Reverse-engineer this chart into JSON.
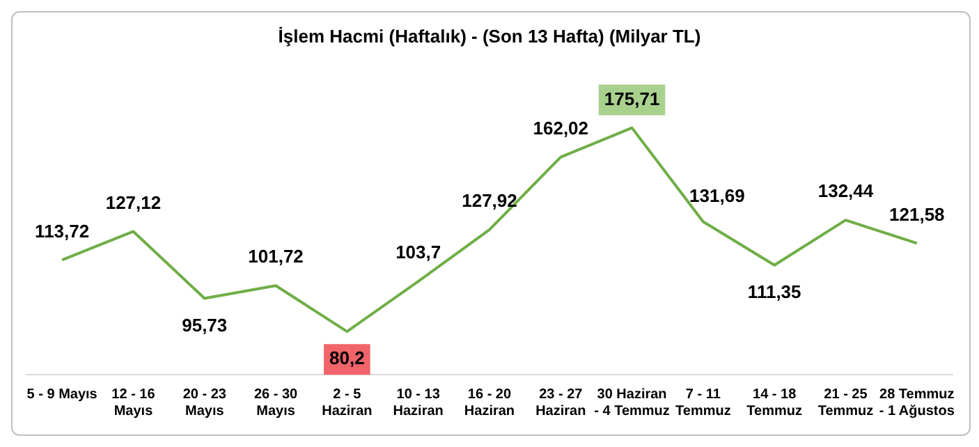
{
  "chart_data": {
    "type": "line",
    "title": "İşlem Hacmi (Haftalık) - (Son 13 Hafta) (Milyar TL)",
    "categories": [
      "5 - 9 Mayıs",
      "12 - 16\nMayıs",
      "20 - 23\nMayıs",
      "26 - 30\nMayıs",
      "2 - 5\nHaziran",
      "10 - 13\nHaziran",
      "16 - 20\nHaziran",
      "23 - 27\nHaziran",
      "30 Haziran\n- 4 Temmuz",
      "7 - 11\nTemmuz",
      "14 - 18\nTemmuz",
      "21 - 25\nTemmuz",
      "28 Temmuz\n- 1 Ağustos"
    ],
    "series": [
      {
        "color": "#70ad47",
        "values": [
          113.72,
          127.12,
          95.73,
          101.72,
          80.2,
          103.7,
          127.92,
          162.02,
          175.71,
          131.69,
          111.35,
          132.44,
          121.58
        ],
        "value_labels": [
          "113,72",
          "127,12",
          "95,73",
          "101,72",
          "80,2",
          "103,7",
          "127,92",
          "162,02",
          "175,71",
          "131,69",
          "111,35",
          "132,44",
          "121,58"
        ]
      }
    ],
    "data_labels": true,
    "grid": false,
    "legend": false,
    "marker": "none",
    "line_style": "solid"
  }
}
